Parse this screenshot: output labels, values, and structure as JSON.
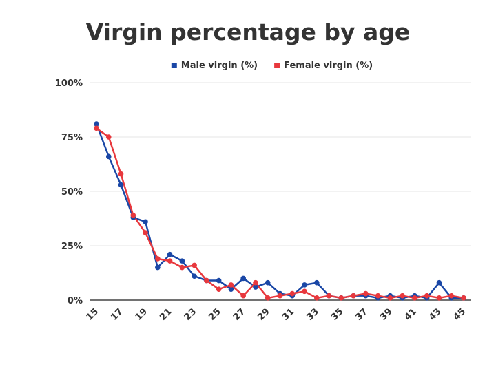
{
  "chart_data": {
    "type": "line",
    "title": "Virgin percentage by age",
    "xlabel": "",
    "ylabel": "",
    "x": [
      15,
      16,
      17,
      18,
      19,
      20,
      21,
      22,
      23,
      24,
      25,
      26,
      27,
      28,
      29,
      30,
      31,
      32,
      33,
      34,
      35,
      36,
      37,
      38,
      39,
      40,
      41,
      42,
      43,
      44,
      45
    ],
    "x_tick_labels": [
      "15",
      "17",
      "19",
      "21",
      "23",
      "25",
      "27",
      "29",
      "31",
      "33",
      "35",
      "37",
      "39",
      "41",
      "43",
      "45"
    ],
    "y_tick_labels": [
      "0%",
      "25%",
      "50%",
      "75%",
      "100%"
    ],
    "ylim": [
      0,
      100
    ],
    "y_ticks": [
      0,
      25,
      50,
      75,
      100
    ],
    "grid": true,
    "legend_position": "top",
    "series": [
      {
        "name": "Male virgin (%)",
        "color": "#1a47a6",
        "values": [
          81,
          66,
          53,
          38,
          36,
          15,
          21,
          18,
          11,
          9,
          9,
          5,
          10,
          6,
          8,
          3,
          2,
          7,
          8,
          2,
          1,
          2,
          2,
          1,
          2,
          1,
          2,
          1,
          8,
          1,
          1
        ]
      },
      {
        "name": "Female virgin (%)",
        "color": "#e8383d",
        "values": [
          79,
          75,
          58,
          39,
          31,
          19,
          18,
          15,
          16,
          9,
          5,
          7,
          2,
          8,
          1,
          2,
          3,
          4,
          1,
          2,
          1,
          2,
          3,
          2,
          1,
          2,
          1,
          2,
          1,
          2,
          1
        ]
      }
    ]
  }
}
